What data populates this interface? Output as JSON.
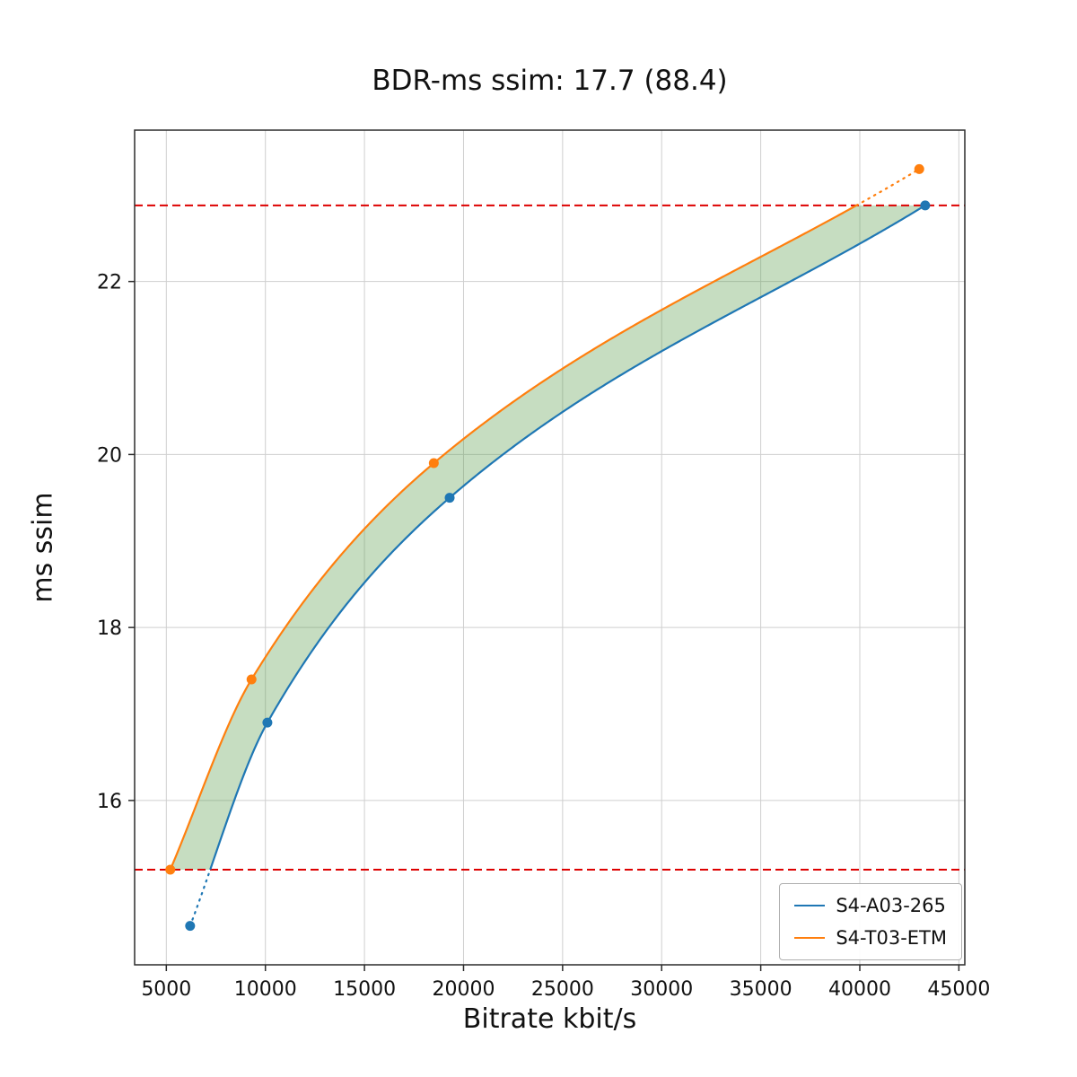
{
  "title": "BDR-ms ssim: 17.7 (88.4)",
  "chart_data": {
    "type": "line",
    "title": "BDR-ms ssim: 17.7 (88.4)",
    "xlabel": "Bitrate kbit/s",
    "ylabel": "ms ssim",
    "xlim": [
      3400,
      45300
    ],
    "ylim": [
      14.1,
      23.75
    ],
    "x_ticks": [
      5000,
      10000,
      15000,
      20000,
      25000,
      30000,
      35000,
      40000,
      45000
    ],
    "y_ticks": [
      16,
      18,
      20,
      22
    ],
    "grid": true,
    "grid_color": "#cfcfcf",
    "band": {
      "low": 15.2,
      "high": 22.88,
      "color": "#dd0000"
    },
    "fill_color": "#5c9e4e",
    "fill_opacity": 0.35,
    "series": [
      {
        "name": "S4-A03-265",
        "color": "#1f77b4",
        "x": [
          6200,
          10100,
          19300,
          43300
        ],
        "y": [
          14.55,
          16.9,
          19.5,
          22.88
        ]
      },
      {
        "name": "S4-T03-ETM",
        "color": "#ff7f0e",
        "x": [
          5200,
          9300,
          18500,
          43000
        ],
        "y": [
          15.2,
          17.4,
          19.9,
          23.3
        ]
      }
    ],
    "legend": {
      "position": "lower right",
      "entries": [
        "S4-A03-265",
        "S4-T03-ETM"
      ]
    }
  }
}
